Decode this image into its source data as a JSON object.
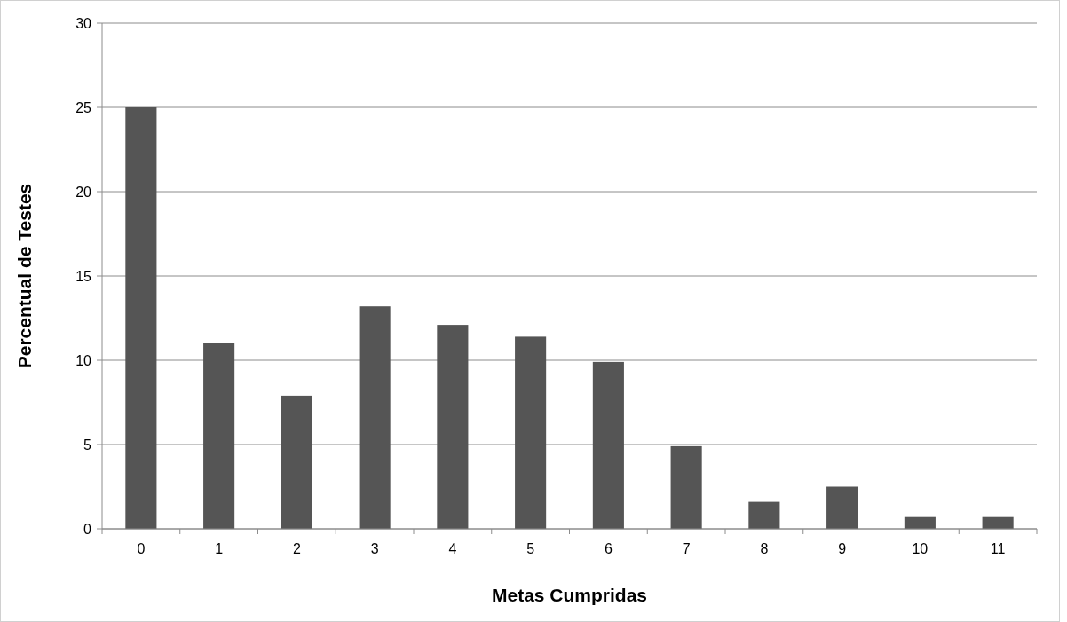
{
  "chart_data": {
    "type": "bar",
    "xlabel": "Metas Cumpridas",
    "ylabel": "Percentual de Testes",
    "categories": [
      "0",
      "1",
      "2",
      "3",
      "4",
      "5",
      "6",
      "7",
      "8",
      "9",
      "10",
      "11"
    ],
    "values": [
      25,
      11,
      7.9,
      13.2,
      12.1,
      11.4,
      9.9,
      4.9,
      1.6,
      2.5,
      0.7,
      0.7
    ],
    "color": "#555555",
    "ylim": [
      0,
      30
    ],
    "yticks": [
      0,
      5,
      10,
      15,
      20,
      25,
      30
    ],
    "grid": "y"
  }
}
